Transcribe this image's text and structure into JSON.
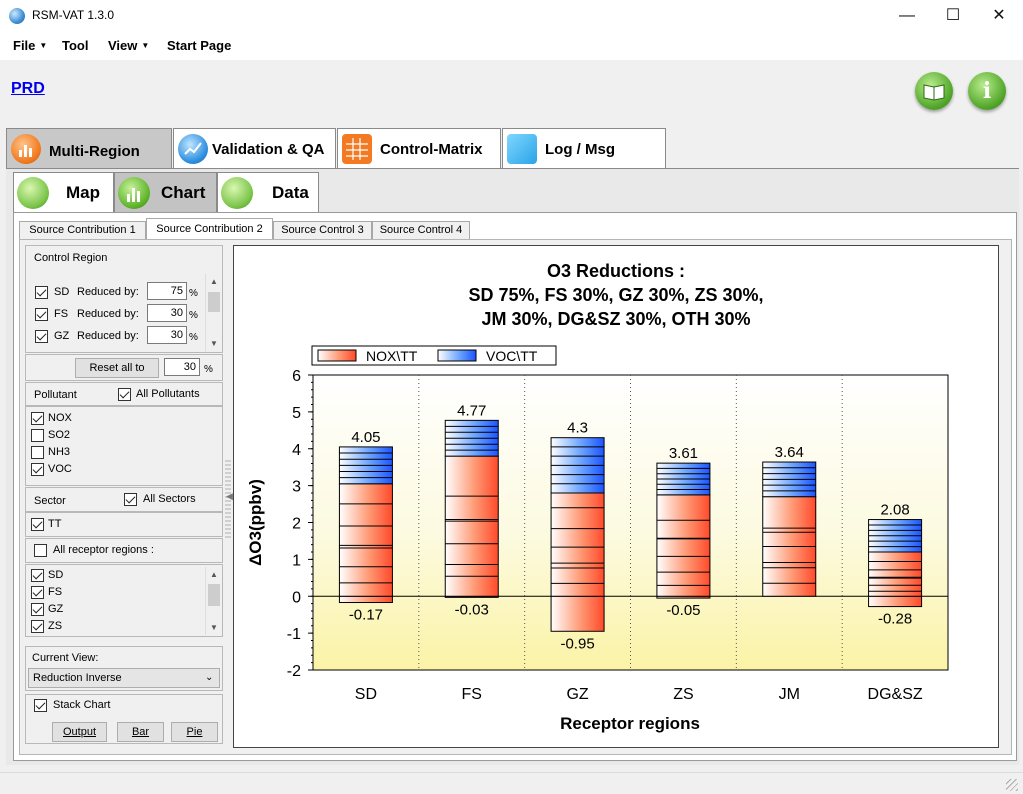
{
  "window": {
    "title": "RSM-VAT 1.3.0",
    "minimize": "—",
    "maximize": "☐",
    "close": "✕"
  },
  "menu": {
    "file": "File",
    "tool": "Tool",
    "view": "View",
    "start_page": "Start Page"
  },
  "prd_link": "PRD",
  "main_tabs": [
    {
      "label": "Multi-Region",
      "icon": "bar-chart-icon",
      "active": true
    },
    {
      "label": "Validation & QA",
      "icon": "line-chart-icon",
      "active": false
    },
    {
      "label": "Control-Matrix",
      "icon": "table-icon",
      "active": false
    },
    {
      "label": "Log / Msg",
      "icon": "cube-icon",
      "active": false
    }
  ],
  "sub_tabs": [
    {
      "label": "Map",
      "icon": "globe-icon",
      "active": false
    },
    {
      "label": "Chart",
      "icon": "bar-chart-icon",
      "active": true
    },
    {
      "label": "Data",
      "icon": "document-icon",
      "active": false
    }
  ],
  "source_tabs": [
    "Source Contribution 1",
    "Source Contribution 2",
    "Source Control 3",
    "Source Control 4"
  ],
  "control_region": {
    "title": "Control Region",
    "rows": [
      {
        "region": "SD",
        "label": "Reduced by:",
        "value": "75",
        "unit": "%",
        "checked": true
      },
      {
        "region": "FS",
        "label": "Reduced by:",
        "value": "30",
        "unit": "%",
        "checked": true
      },
      {
        "region": "GZ",
        "label": "Reduced by:",
        "value": "30",
        "unit": "%",
        "checked": true
      }
    ],
    "reset_label": "Reset all to",
    "reset_value": "30",
    "reset_unit": "%"
  },
  "pollutant": {
    "title": "Pollutant",
    "all_label": "All Pollutants",
    "items": [
      {
        "label": "NOX",
        "checked": true
      },
      {
        "label": "SO2",
        "checked": false
      },
      {
        "label": "NH3",
        "checked": false
      },
      {
        "label": "VOC",
        "checked": true
      }
    ]
  },
  "sector": {
    "title": "Sector",
    "all_label": "All Sectors",
    "items": [
      {
        "label": "TT",
        "checked": true
      }
    ]
  },
  "receptor": {
    "all_label": "All receptor regions :",
    "items": [
      {
        "label": "SD",
        "checked": true
      },
      {
        "label": "FS",
        "checked": true
      },
      {
        "label": "GZ",
        "checked": true
      },
      {
        "label": "ZS",
        "checked": true
      }
    ]
  },
  "current_view": {
    "label": "Current View:",
    "value": "Reduction Inverse"
  },
  "stack_chart": {
    "label": "Stack Chart",
    "checked": true
  },
  "buttons": {
    "output": "Output",
    "bar": "Bar",
    "pie": "Pie"
  },
  "colors": {
    "nox": "#ff4a2a",
    "voc": "#1b55ff",
    "accent_green": "#54a82b"
  },
  "chart_data": {
    "type": "bar",
    "stacked": true,
    "title_lines": [
      "O3 Reductions :",
      "SD 75%, FS 30%, GZ 30%, ZS 30%,",
      "JM 30%, DG&SZ 30%, OTH 30%"
    ],
    "xlabel": "Receptor regions",
    "ylabel": "ΔO3(ppbv)",
    "ylim": [
      -2,
      6
    ],
    "yticks": [
      6,
      5,
      4,
      3,
      2,
      1,
      0,
      -1,
      -2
    ],
    "categories": [
      "SD",
      "FS",
      "GZ",
      "ZS",
      "JM",
      "DG&SZ"
    ],
    "series": [
      {
        "name": "NOX\\TT",
        "values": [
          3.05,
          3.8,
          2.8,
          2.75,
          2.7,
          1.2
        ]
      },
      {
        "name": "VOC\\TT",
        "values": [
          1.0,
          0.97,
          1.5,
          0.86,
          0.94,
          0.88
        ]
      }
    ],
    "totals": [
      "4.05",
      "4.77",
      "4.3",
      "3.61",
      "3.64",
      "2.08"
    ],
    "negatives": [
      -0.17,
      -0.03,
      -0.95,
      -0.05,
      0,
      -0.28
    ],
    "negative_labels": [
      "-0.17",
      "-0.03",
      "-0.95",
      "-0.05",
      "",
      "-0.28"
    ],
    "legend_position": "top-left",
    "grid": false
  }
}
